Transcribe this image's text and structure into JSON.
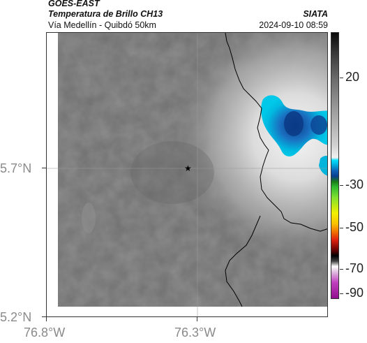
{
  "header": {
    "satellite": "GOES-EAST",
    "product": "Temperatura de Brillo CH13",
    "route": "Vía Medellín - Quibdó 50km",
    "org": "SIATA",
    "datetime": "2024-09-10 08:59"
  },
  "axes": {
    "lon_ticks": [
      "76.8°W",
      "76.3°W"
    ],
    "lat_ticks": [
      "5.7°N",
      "5.2°N"
    ]
  },
  "colorbar": {
    "tick_labels": [
      "20",
      "-30",
      "-50",
      "-70",
      "-90"
    ],
    "colors": {
      "warm": "#7a7a7a",
      "cold_cyan": "#00c8e8",
      "deep_blue": "#0a3f8f",
      "green": "#2fb82f",
      "yellow": "#f3f000",
      "red": "#e02010",
      "black": "#000000",
      "magenta": "#c040c0"
    }
  },
  "map": {
    "marker_icon": "star-marker",
    "border_color": "#000000",
    "cold_cloud_colors": [
      "#00b4dc",
      "#1e5fb0",
      "#0a3f8f"
    ]
  }
}
